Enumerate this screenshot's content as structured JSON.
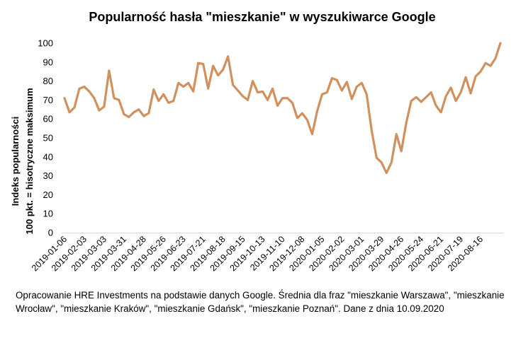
{
  "chart_data": {
    "type": "line",
    "title": "Popularność hasła \"mieszkanie\" w wyszukiwarce Google",
    "xlabel": "",
    "ylabel_lines": [
      "Indeks popularności",
      "100 pkt. = hisotryczne maksimum"
    ],
    "ylim": [
      0,
      100
    ],
    "yticks": [
      0,
      10,
      20,
      30,
      40,
      50,
      60,
      70,
      80,
      90,
      100
    ],
    "grid": false,
    "legend": "none",
    "series": [
      {
        "color": "#d1915e",
        "x_start": "2019-01-06",
        "x_step_days": 7,
        "values": [
          71,
          63.5,
          66,
          76,
          77,
          74.5,
          71,
          64.5,
          66.5,
          85.5,
          71,
          70,
          62.5,
          61,
          63.5,
          65,
          61.5,
          63,
          75.5,
          69.5,
          73,
          68.5,
          69.5,
          79,
          77,
          79,
          74.5,
          89.5,
          89,
          76,
          88,
          83,
          86,
          93,
          78,
          75,
          72,
          70,
          80,
          74,
          74.5,
          70,
          76,
          67,
          71,
          71,
          68.5,
          60.5,
          63,
          59.5,
          52,
          64,
          73,
          74,
          81.5,
          80.5,
          75,
          79.5,
          70.5,
          77,
          79,
          73,
          54,
          39.5,
          37,
          31.5,
          37,
          52,
          43,
          58,
          69.5,
          71.5,
          69,
          71.5,
          74,
          67,
          63.5,
          72,
          76.5,
          69.5,
          74,
          82,
          73.5,
          82.5,
          85,
          89.5,
          88,
          92,
          100
        ]
      }
    ],
    "x_tick_labels": [
      "2019-01-06",
      "2019-02-03",
      "2019-03-03",
      "2019-03-31",
      "2019-04-28",
      "2019-05-26",
      "2019-06-23",
      "2019-07-21",
      "2019-08-18",
      "2019-09-15",
      "2019-10-13",
      "2019-11-10",
      "2019-12-08",
      "2020-01-05",
      "2020-02-02",
      "2020-03-01",
      "2020-03-29",
      "2020-04-26",
      "2020-05-24",
      "2020-06-21",
      "2020-07-19",
      "2020-08-16"
    ]
  },
  "footnote": "Opracowanie HRE Investments na podstawie danych Google. Średnia dla fraz \"mieszkanie Warszawa\", \"mieszkanie Wrocław\", \"mieszkanie Kraków\", \"mieszkanie Gdańsk\", \"mieszkanie Poznań\". Dane z dnia 10.09.2020"
}
